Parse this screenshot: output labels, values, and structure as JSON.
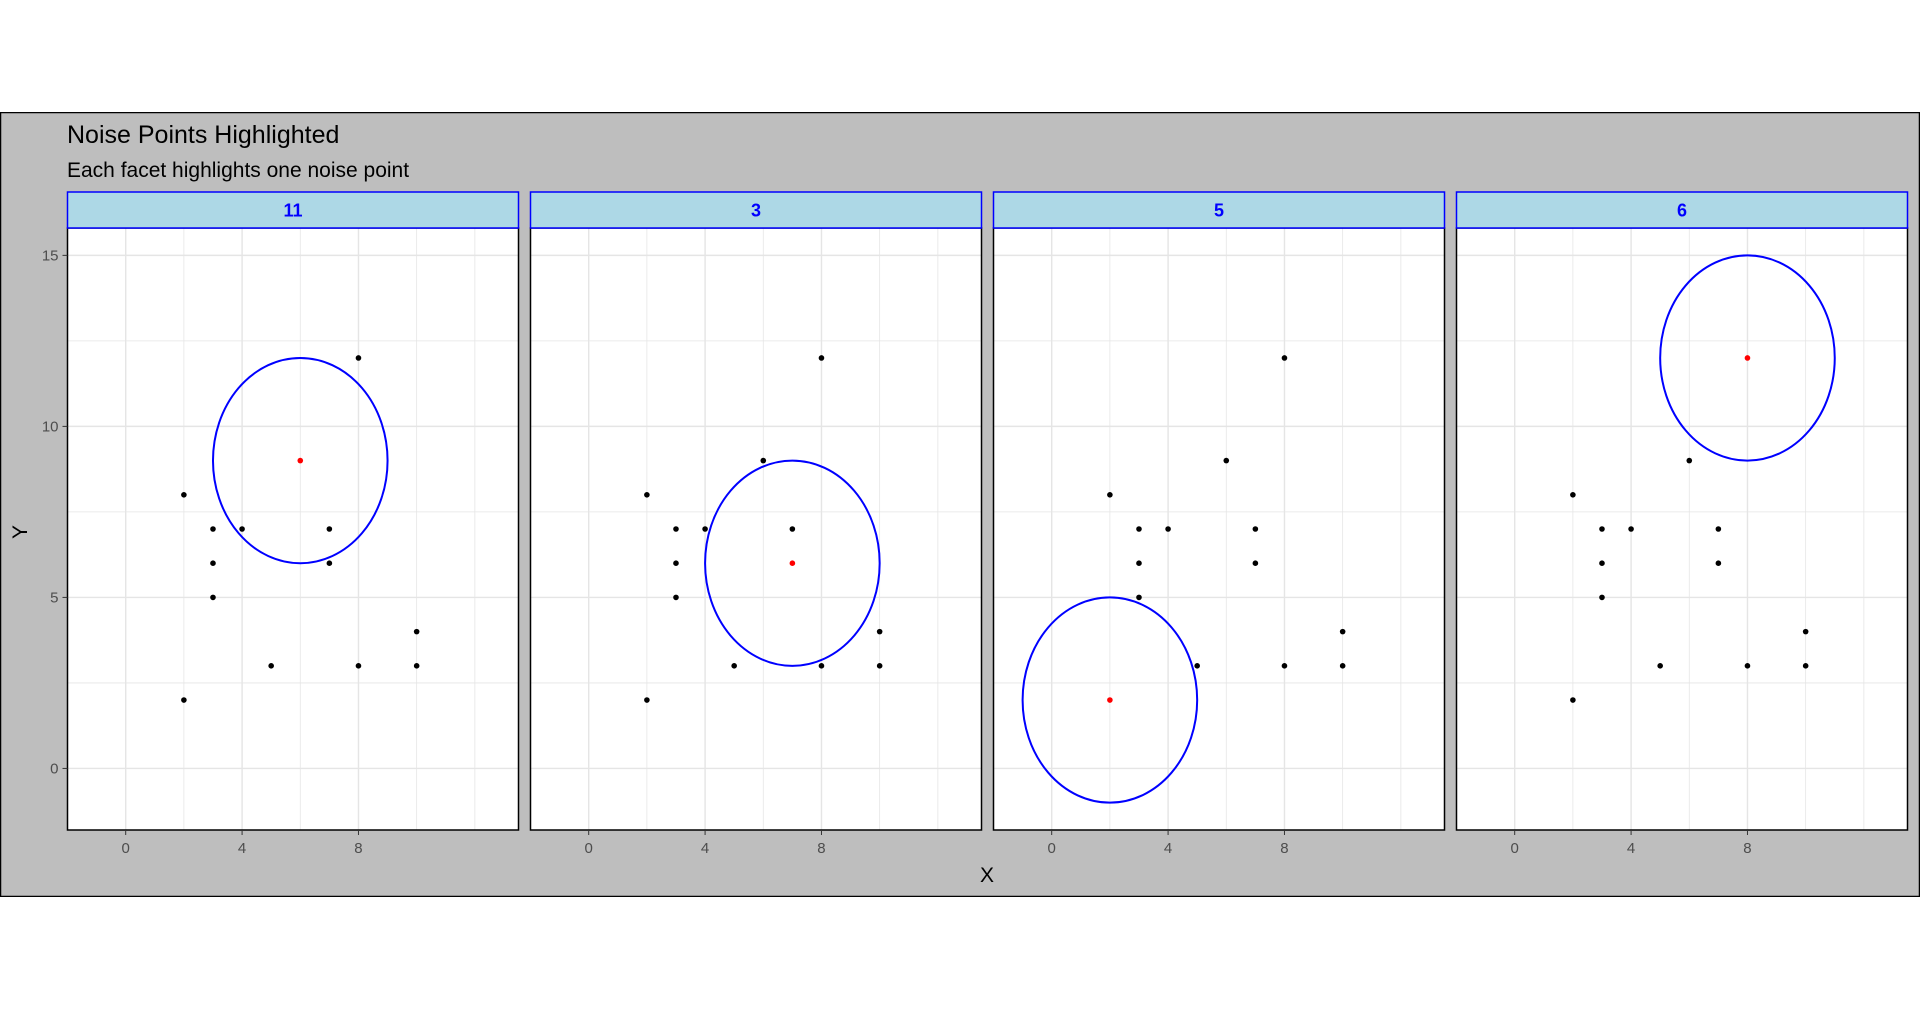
{
  "chart_data": {
    "type": "scatter",
    "title": "Noise Points Highlighted",
    "subtitle": "Each facet highlights one noise point",
    "xlabel": "X",
    "ylabel": "Y",
    "xlim": [
      -2,
      13.5
    ],
    "ylim": [
      -1.8,
      15.8
    ],
    "x_ticks": [
      0,
      4,
      8
    ],
    "y_ticks": [
      0,
      5,
      10,
      15
    ],
    "grid": true,
    "points": [
      {
        "x": 2,
        "y": 2
      },
      {
        "x": 2,
        "y": 8
      },
      {
        "x": 3,
        "y": 5
      },
      {
        "x": 3,
        "y": 6
      },
      {
        "x": 3,
        "y": 7
      },
      {
        "x": 4,
        "y": 7
      },
      {
        "x": 5,
        "y": 3
      },
      {
        "x": 6,
        "y": 9
      },
      {
        "x": 7,
        "y": 6
      },
      {
        "x": 7,
        "y": 7
      },
      {
        "x": 8,
        "y": 3
      },
      {
        "x": 8,
        "y": 12
      },
      {
        "x": 10,
        "y": 3
      },
      {
        "x": 10,
        "y": 4
      }
    ],
    "circle_radius": 3,
    "facets": [
      {
        "label": "11",
        "highlight": {
          "x": 6,
          "y": 9
        }
      },
      {
        "label": "3",
        "highlight": {
          "x": 7,
          "y": 6
        }
      },
      {
        "label": "5",
        "highlight": {
          "x": 2,
          "y": 2
        }
      },
      {
        "label": "6",
        "highlight": {
          "x": 8,
          "y": 12
        }
      }
    ],
    "colors": {
      "background": "#bebebe",
      "panel": "#ffffff",
      "grid": "#e5e5e5",
      "strip_fill": "#add8e6",
      "strip_border": "#0000ff",
      "strip_text": "#0000ff",
      "circle": "#0000ff",
      "point": "#000000",
      "highlight": "#ff0000"
    }
  }
}
